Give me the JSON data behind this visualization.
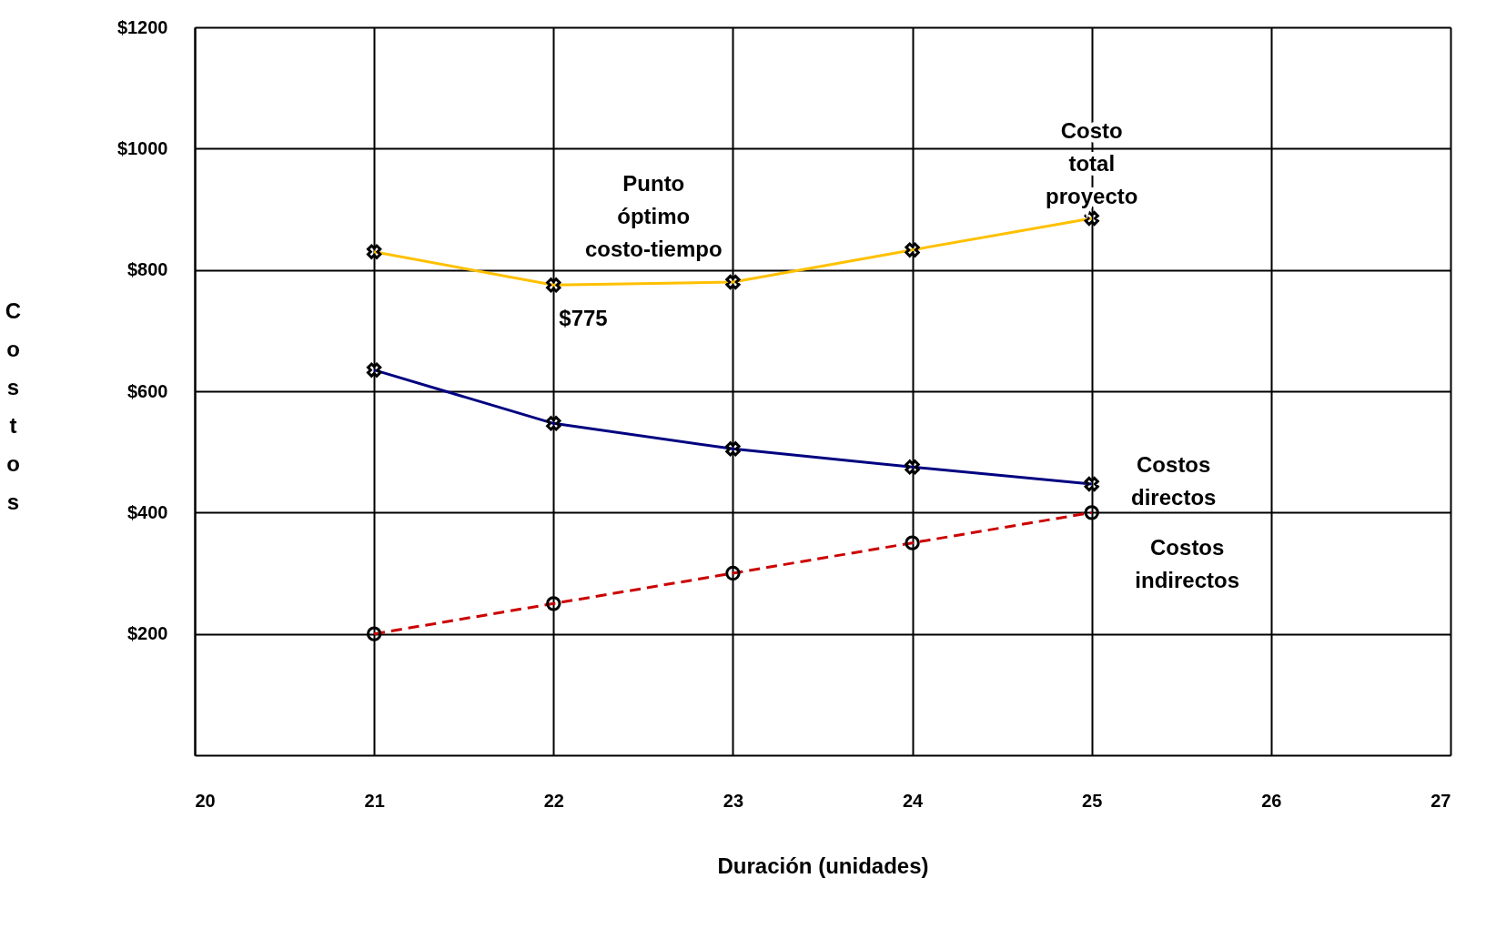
{
  "chart_data": {
    "type": "line",
    "xlabel": "Duración (unidades)",
    "ylabel": "Costos",
    "x": [
      21,
      22,
      23,
      24,
      25
    ],
    "series": [
      {
        "name": "Costo total proyecto",
        "color": "#ffc000",
        "values": [
          830,
          775,
          780,
          833,
          885
        ],
        "marker": "cross",
        "line_style": "solid"
      },
      {
        "name": "Costos directos",
        "color": "#000080",
        "values": [
          635,
          547,
          505,
          475,
          447
        ],
        "marker": "cross",
        "line_style": "solid"
      },
      {
        "name": "Costos indirectos",
        "color": "#cc0000",
        "values": [
          200,
          250,
          300,
          350,
          400
        ],
        "marker": "circle",
        "line_style": "dashed"
      }
    ],
    "xlim": [
      20,
      27
    ],
    "xticks": [
      20,
      21,
      22,
      23,
      24,
      25,
      26,
      27
    ],
    "ylim": [
      0,
      1200
    ],
    "yticks": [
      {
        "value": 200,
        "label": "$200"
      },
      {
        "value": 400,
        "label": "$400"
      },
      {
        "value": 600,
        "label": "$600"
      },
      {
        "value": 800,
        "label": "$800"
      },
      {
        "value": 1000,
        "label": "$1000"
      },
      {
        "value": 1200,
        "label": "$1200"
      }
    ],
    "grid": true,
    "legend": false,
    "annotations": [
      {
        "text": "Punto óptimo costo-tiempo",
        "x": 22,
        "y": 775
      },
      {
        "text": "$775",
        "x": 22,
        "y": 775
      }
    ]
  }
}
